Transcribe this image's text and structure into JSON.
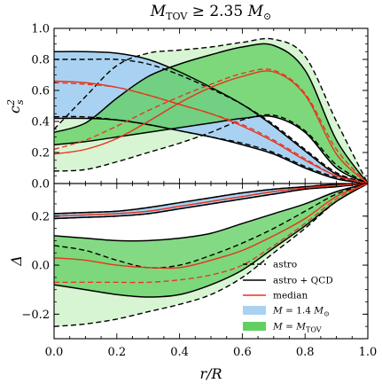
{
  "chart_data": {
    "title": "M_TOV ≥ 2.35 M_⊙",
    "x_axis": {
      "label": "r/R",
      "range": [
        0,
        1
      ],
      "ticks": [
        "0.0",
        "0.2",
        "0.4",
        "0.6",
        "0.8",
        "1.0"
      ]
    },
    "legend": {
      "placement": "lower-right",
      "entries": [
        {
          "label": "astro",
          "style": "dashed-black"
        },
        {
          "label": "astro + QCD",
          "style": "solid-black"
        },
        {
          "label": "median",
          "style": "solid-red"
        },
        {
          "label": "M = 1.4 M_⊙",
          "style": "blue-fill"
        },
        {
          "label": "M = M_TOV",
          "style": "green-fill"
        }
      ]
    },
    "colors": {
      "blue_band": "#a9d2f2",
      "green_band": "#62cf62",
      "green_light": "#d8f5d3",
      "median": "#e8321e"
    },
    "panels": [
      {
        "name": "sound-speed",
        "type": "area",
        "ylabel": "c_s^2",
        "ylim": [
          0,
          1
        ],
        "yticks": [
          "0.0",
          "0.2",
          "0.4",
          "0.6",
          "0.8",
          "1.0"
        ],
        "x": [
          0,
          0.1,
          0.2,
          0.3,
          0.4,
          0.5,
          0.6,
          0.7,
          0.8,
          0.9,
          1.0
        ],
        "series": [
          {
            "band": "M = 1.4 M_⊙",
            "kind": "astro",
            "lower": [
              0.43,
              0.43,
              0.41,
              0.38,
              0.34,
              0.3,
              0.26,
              0.2,
              0.11,
              0.04,
              0.0
            ],
            "median": [
              0.65,
              0.64,
              0.62,
              0.57,
              0.51,
              0.45,
              0.38,
              0.28,
              0.16,
              0.05,
              0.0
            ],
            "upper": [
              0.8,
              0.8,
              0.8,
              0.77,
              0.7,
              0.61,
              0.51,
              0.38,
              0.22,
              0.07,
              0.0
            ]
          },
          {
            "band": "M = 1.4 M_⊙",
            "kind": "astro + QCD",
            "lower": [
              0.42,
              0.42,
              0.41,
              0.38,
              0.34,
              0.3,
              0.25,
              0.19,
              0.1,
              0.03,
              0.0
            ],
            "median": [
              0.66,
              0.65,
              0.62,
              0.57,
              0.51,
              0.45,
              0.37,
              0.27,
              0.15,
              0.05,
              0.0
            ],
            "upper": [
              0.85,
              0.85,
              0.84,
              0.8,
              0.72,
              0.62,
              0.51,
              0.37,
              0.21,
              0.06,
              0.0
            ]
          },
          {
            "band": "M = M_TOV",
            "kind": "astro",
            "lower": [
              0.08,
              0.09,
              0.14,
              0.2,
              0.26,
              0.33,
              0.41,
              0.44,
              0.34,
              0.12,
              0.0
            ],
            "median": [
              0.22,
              0.28,
              0.37,
              0.47,
              0.56,
              0.64,
              0.71,
              0.73,
              0.58,
              0.22,
              0.0
            ],
            "upper": [
              0.35,
              0.56,
              0.76,
              0.84,
              0.86,
              0.88,
              0.91,
              0.93,
              0.82,
              0.4,
              0.0
            ]
          },
          {
            "band": "M = M_TOV",
            "kind": "astro + QCD",
            "lower": [
              0.25,
              0.27,
              0.3,
              0.33,
              0.36,
              0.39,
              0.42,
              0.43,
              0.33,
              0.1,
              0.0
            ],
            "median": [
              0.19,
              0.22,
              0.29,
              0.4,
              0.52,
              0.62,
              0.69,
              0.72,
              0.57,
              0.19,
              0.0
            ],
            "upper": [
              0.33,
              0.39,
              0.55,
              0.69,
              0.77,
              0.83,
              0.88,
              0.89,
              0.73,
              0.28,
              0.0
            ]
          }
        ]
      },
      {
        "name": "delta",
        "type": "area",
        "ylabel": "Δ",
        "ylim": [
          -0.3,
          0.333
        ],
        "yticks": [
          "−0.2",
          "0.0",
          "0.2"
        ],
        "x": [
          0,
          0.1,
          0.2,
          0.3,
          0.4,
          0.5,
          0.6,
          0.7,
          0.8,
          0.9,
          1.0
        ],
        "series": [
          {
            "band": "M = 1.4 M_⊙",
            "kind": "astro",
            "lower": [
              0.19,
              0.195,
              0.2,
              0.21,
              0.23,
              0.25,
              0.27,
              0.29,
              0.31,
              0.32,
              0.333
            ],
            "median": [
              0.2,
              0.205,
              0.21,
              0.22,
              0.24,
              0.26,
              0.28,
              0.3,
              0.315,
              0.325,
              0.333
            ],
            "upper": [
              0.21,
              0.215,
              0.22,
              0.235,
              0.255,
              0.275,
              0.295,
              0.31,
              0.32,
              0.33,
              0.333
            ]
          },
          {
            "band": "M = 1.4 M_⊙",
            "kind": "astro + QCD",
            "lower": [
              0.19,
              0.195,
              0.2,
              0.21,
              0.23,
              0.25,
              0.27,
              0.29,
              0.31,
              0.32,
              0.333
            ],
            "median": [
              0.2,
              0.205,
              0.21,
              0.22,
              0.24,
              0.26,
              0.28,
              0.3,
              0.315,
              0.325,
              0.333
            ],
            "upper": [
              0.21,
              0.215,
              0.22,
              0.235,
              0.255,
              0.275,
              0.295,
              0.31,
              0.32,
              0.33,
              0.333
            ]
          },
          {
            "band": "M = M_TOV",
            "kind": "astro",
            "lower": [
              -0.25,
              -0.24,
              -0.22,
              -0.19,
              -0.16,
              -0.12,
              -0.05,
              0.05,
              0.15,
              0.26,
              0.333
            ],
            "median": [
              -0.07,
              -0.07,
              -0.07,
              -0.07,
              -0.06,
              -0.04,
              0.0,
              0.08,
              0.17,
              0.27,
              0.333
            ],
            "upper": [
              0.08,
              0.06,
              0.02,
              -0.01,
              0.0,
              0.04,
              0.09,
              0.15,
              0.22,
              0.29,
              0.333
            ]
          },
          {
            "band": "M = M_TOV",
            "kind": "astro + QCD",
            "lower": [
              -0.08,
              -0.1,
              -0.12,
              -0.13,
              -0.12,
              -0.08,
              -0.02,
              0.07,
              0.16,
              0.26,
              0.333
            ],
            "median": [
              0.03,
              0.02,
              0.0,
              -0.01,
              -0.01,
              0.02,
              0.06,
              0.12,
              0.19,
              0.28,
              0.333
            ],
            "upper": [
              0.12,
              0.11,
              0.1,
              0.1,
              0.11,
              0.13,
              0.17,
              0.21,
              0.25,
              0.3,
              0.333
            ]
          }
        ]
      }
    ]
  }
}
